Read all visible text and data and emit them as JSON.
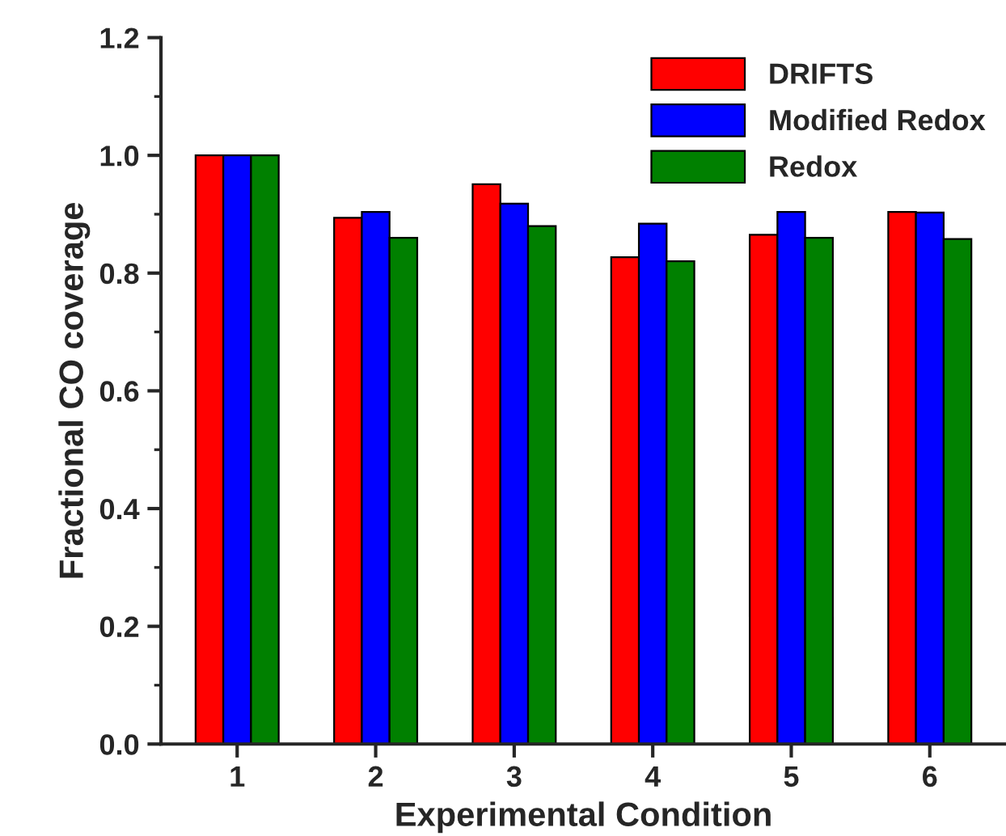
{
  "chart_data": {
    "type": "bar",
    "xlabel": "Experimental Condition",
    "ylabel": "Fractional CO coverage",
    "categories": [
      "1",
      "2",
      "3",
      "4",
      "5",
      "6"
    ],
    "series": [
      {
        "name": "DRIFTS",
        "color": "#ff0000",
        "values": [
          1.0,
          0.894,
          0.951,
          0.827,
          0.865,
          0.904
        ]
      },
      {
        "name": "Modified Redox",
        "color": "#0000ff",
        "values": [
          1.0,
          0.904,
          0.918,
          0.884,
          0.904,
          0.903
        ]
      },
      {
        "name": "Redox",
        "color": "#008000",
        "values": [
          1.0,
          0.86,
          0.88,
          0.82,
          0.86,
          0.858
        ]
      }
    ],
    "ylim": [
      0,
      1.2
    ],
    "yticks": [
      {
        "value": 0,
        "label": "0.0"
      },
      {
        "value": 0.2,
        "label": "0.2"
      },
      {
        "value": 0.4,
        "label": "0.4"
      },
      {
        "value": 0.6,
        "label": "0.6"
      },
      {
        "value": 0.8,
        "label": "0.8"
      },
      {
        "value": 1.0,
        "label": "1.0"
      },
      {
        "value": 1.2,
        "label": "1.2"
      }
    ],
    "grid": false,
    "legend": "top right"
  }
}
